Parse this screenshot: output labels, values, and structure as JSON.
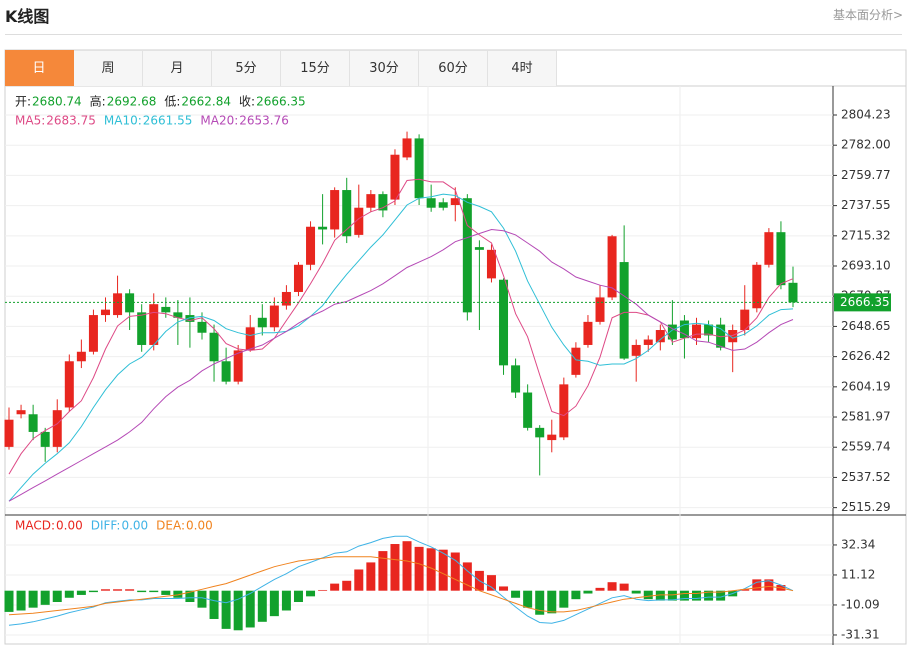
{
  "header": {
    "title": "K线图",
    "link": "基本面分析>"
  },
  "tabs": [
    "日",
    "周",
    "月",
    "5分",
    "15分",
    "30分",
    "60分",
    "4时"
  ],
  "active_tab": 0,
  "chart_data": [
    {
      "type": "candlestick",
      "ohlc_labels": [
        "开:",
        "高:",
        "低:",
        "收:"
      ],
      "up_color": "#e8261f",
      "down_color": "#12a12c",
      "open": [
        2560,
        2584,
        2584,
        2571,
        2560,
        2589,
        2623,
        2630,
        2657,
        2657,
        2673,
        2659,
        2635,
        2663,
        2659,
        2657,
        2652,
        2644,
        2623,
        2608,
        2631,
        2655,
        2648,
        2664,
        2674,
        2694,
        2722,
        2720,
        2749,
        2716,
        2736,
        2746,
        2742,
        2773,
        2787,
        2743,
        2740,
        2738,
        2743,
        2707,
        2684,
        2683,
        2620,
        2600,
        2574,
        2565,
        2567,
        2613,
        2635,
        2652,
        2670,
        2696,
        2627,
        2635,
        2637,
        2650,
        2653,
        2640,
        2650,
        2650,
        2637,
        2646,
        2662,
        2694,
        2718,
        2680.74
      ],
      "high": [
        2589,
        2591,
        2591,
        2574,
        2595,
        2628,
        2639,
        2661,
        2670,
        2686,
        2676,
        2665,
        2673,
        2670,
        2668,
        2670,
        2659,
        2650,
        2633,
        2635,
        2657,
        2665,
        2670,
        2679,
        2696,
        2726,
        2746,
        2751,
        2758,
        2753,
        2749,
        2748,
        2779,
        2792,
        2790,
        2753,
        2743,
        2751,
        2746,
        2712,
        2709,
        2684,
        2625,
        2606,
        2576,
        2580,
        2611,
        2637,
        2657,
        2679,
        2716,
        2723,
        2639,
        2642,
        2650,
        2668,
        2657,
        2655,
        2653,
        2655,
        2650,
        2679,
        2696,
        2721,
        2726,
        2692.68
      ],
      "low": [
        2558,
        2581,
        2565,
        2549,
        2556,
        2586,
        2618,
        2628,
        2652,
        2655,
        2646,
        2630,
        2631,
        2655,
        2635,
        2633,
        2639,
        2608,
        2606,
        2606,
        2630,
        2642,
        2645,
        2661,
        2671,
        2690,
        2709,
        2714,
        2710,
        2714,
        2733,
        2729,
        2738,
        2771,
        2738,
        2733,
        2734,
        2726,
        2653,
        2646,
        2681,
        2613,
        2596,
        2572,
        2539,
        2556,
        2565,
        2611,
        2633,
        2650,
        2668,
        2624,
        2608,
        2630,
        2631,
        2635,
        2625,
        2635,
        2637,
        2631,
        2615,
        2642,
        2659,
        2692,
        2676,
        2662.84
      ],
      "close": [
        2580,
        2587,
        2571,
        2560,
        2587,
        2623,
        2630,
        2657,
        2661,
        2673,
        2659,
        2635,
        2665,
        2659,
        2655,
        2652,
        2644,
        2623,
        2608,
        2631,
        2648,
        2648,
        2664,
        2674,
        2694,
        2722,
        2720,
        2749,
        2715,
        2736,
        2746,
        2734,
        2775,
        2787,
        2743,
        2736,
        2736,
        2743,
        2659,
        2705,
        2705,
        2620,
        2600,
        2574,
        2567,
        2569,
        2606,
        2633,
        2652,
        2670,
        2715,
        2625,
        2635,
        2639,
        2646,
        2639,
        2640,
        2650,
        2642,
        2633,
        2646,
        2661,
        2694,
        2718,
        2679,
        2666.35
      ],
      "series": [
        {
          "name": "MA5:",
          "color": "#de4a86",
          "values": [
            2540,
            2555,
            2566,
            2572,
            2577,
            2586,
            2594,
            2611,
            2632,
            2649,
            2656,
            2657,
            2659,
            2658,
            2655,
            2653,
            2655,
            2647,
            2636,
            2632,
            2631,
            2632,
            2640,
            2653,
            2666,
            2680,
            2695,
            2712,
            2720,
            2728,
            2733,
            2736,
            2741,
            2756,
            2757,
            2755,
            2755,
            2749,
            2723,
            2716,
            2710,
            2686,
            2658,
            2641,
            2613,
            2586,
            2583,
            2590,
            2605,
            2626,
            2655,
            2659,
            2659,
            2657,
            2652,
            2637,
            2640,
            2643,
            2643,
            2641,
            2642,
            2646,
            2655,
            2670,
            2680,
            2683.75
          ]
        },
        {
          "name": "MA10:",
          "color": "#2fbfd6",
          "values": [
            2520,
            2530,
            2540,
            2548,
            2555,
            2563,
            2575,
            2589,
            2602,
            2613,
            2621,
            2626,
            2635,
            2645,
            2652,
            2655,
            2656,
            2653,
            2647,
            2644,
            2642,
            2644,
            2644,
            2645,
            2649,
            2656,
            2664,
            2676,
            2687,
            2697,
            2707,
            2716,
            2727,
            2738,
            2743,
            2744,
            2746,
            2745,
            2740,
            2737,
            2733,
            2721,
            2704,
            2682,
            2665,
            2648,
            2635,
            2624,
            2623,
            2620,
            2621,
            2621,
            2625,
            2631,
            2639,
            2646,
            2650,
            2651,
            2650,
            2647,
            2640,
            2643,
            2649,
            2657,
            2661,
            2661.55
          ]
        },
        {
          "name": "MA20:",
          "color": "#b54ab6",
          "values": [
            2520,
            2525,
            2530,
            2535,
            2540,
            2545,
            2550,
            2555,
            2560,
            2565,
            2571,
            2578,
            2588,
            2597,
            2604,
            2609,
            2616,
            2621,
            2625,
            2629,
            2632,
            2635,
            2640,
            2645,
            2651,
            2656,
            2660,
            2665,
            2667,
            2671,
            2675,
            2680,
            2686,
            2692,
            2696,
            2700,
            2705,
            2711,
            2714,
            2717,
            2720,
            2719,
            2716,
            2710,
            2704,
            2696,
            2691,
            2685,
            2682,
            2679,
            2677,
            2671,
            2665,
            2657,
            2652,
            2647,
            2643,
            2638,
            2637,
            2634,
            2631,
            2632,
            2637,
            2644,
            2650,
            2653.76
          ]
        }
      ],
      "ylim": [
        2509.87,
        2824.1
      ],
      "yticks": [
        2804.23,
        {
          "value": 2782,
          "label": "2782.00"
        },
        2759.77,
        2737.55,
        2715.32,
        {
          "value": 2693.1,
          "label": "2693.10"
        },
        2670.87,
        2648.65,
        2626.42,
        2604.19,
        2581.97,
        2559.74,
        2537.52,
        2515.29
      ],
      "grid": true
    },
    {
      "type": "macd",
      "series": [
        {
          "name": "MACD:",
          "color": "#e8261f",
          "negative_color": "#12a12c",
          "legend_value": "0.00",
          "values": [
            -15,
            -14,
            -12,
            -10,
            -8,
            -5,
            -3,
            -1,
            1,
            1,
            1,
            -1,
            -1,
            -3,
            -5,
            -8,
            -12,
            -20,
            -27,
            -28,
            -26,
            -22,
            -18,
            -14,
            -8,
            -4,
            0.5,
            5,
            7,
            15,
            20,
            28,
            33,
            35,
            31,
            30,
            29,
            27,
            20,
            14,
            11,
            3,
            -5,
            -12,
            -17,
            -16,
            -12,
            -6,
            -2,
            2,
            6,
            5,
            -2,
            -6,
            -7,
            -7,
            -7,
            -7,
            -7,
            -7,
            -4,
            1,
            8,
            8,
            4,
            0
          ]
        },
        {
          "name": "DIFF:",
          "color": "#3fb3e6",
          "legend_value": "0.00",
          "values": [
            -24.5,
            -23.5,
            -22,
            -20,
            -18,
            -15.5,
            -13.5,
            -11.5,
            -8.5,
            -7.5,
            -6.5,
            -6.5,
            -5.5,
            -5.5,
            -5.5,
            -5,
            -5,
            -7,
            -8.5,
            -6,
            -2,
            3,
            8,
            12,
            17,
            20,
            23.25,
            26.5,
            27.5,
            31.5,
            34,
            37,
            38.5,
            38.5,
            34.5,
            31,
            26.5,
            21.5,
            14,
            7,
            2.5,
            -4.5,
            -11.5,
            -18,
            -22.5,
            -23,
            -21,
            -17,
            -13,
            -9,
            -5,
            -3.5,
            -6,
            -7,
            -6.5,
            -6.5,
            -5.5,
            -5.5,
            -4.5,
            -4.5,
            -2,
            1.5,
            6,
            7,
            4,
            0
          ]
        },
        {
          "name": "DEA:",
          "color": "#f0831f",
          "legend_value": "0.00",
          "values": [
            -17,
            -16.5,
            -16,
            -15,
            -14,
            -13,
            -12,
            -11,
            -9,
            -8,
            -7,
            -6,
            -5,
            -4,
            -3,
            -1,
            1,
            3,
            5,
            8,
            11,
            14,
            17,
            19,
            21,
            22,
            23,
            24,
            24,
            24,
            24,
            23,
            22,
            21,
            19,
            16,
            12,
            8,
            4,
            0,
            -3,
            -6,
            -9,
            -12,
            -14,
            -15,
            -15,
            -14,
            -12,
            -10,
            -8,
            -6,
            -5,
            -4,
            -3,
            -3,
            -2,
            -2,
            -1,
            -1,
            0,
            1,
            2,
            3,
            2,
            0
          ]
        }
      ],
      "ylim": [
        -38.4,
        51.4
      ],
      "yticks": [
        32.34,
        11.12,
        -10.09,
        -31.31
      ],
      "grid": true
    }
  ]
}
